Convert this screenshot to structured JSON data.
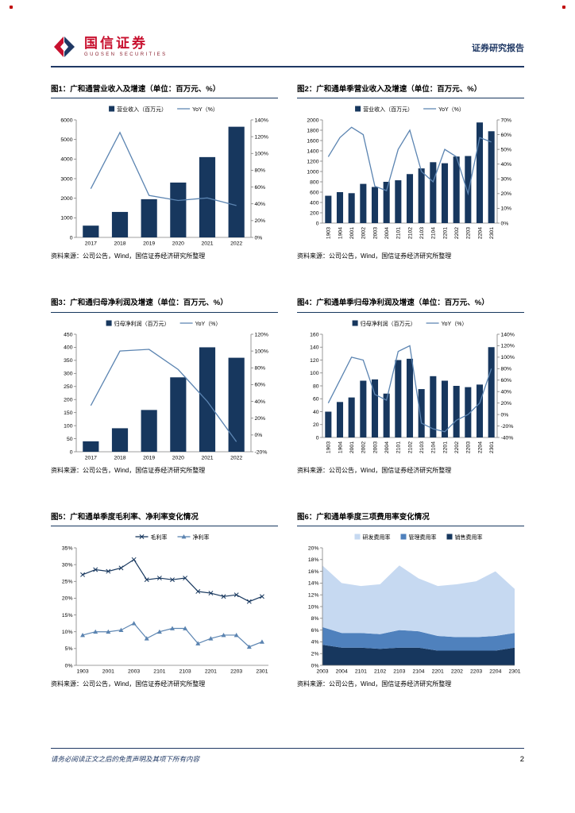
{
  "header": {
    "brand_cn": "国信证券",
    "brand_en": "GUOSEN SECURITIES",
    "report_type": "证券研究报告"
  },
  "footer": {
    "disclaimer": "请务必阅读正文之后的免责声明及其项下所有内容",
    "page_number": "2"
  },
  "colors": {
    "navy": "#17375e",
    "line_blue": "#5b84b1",
    "mid_blue": "#4f81bd",
    "light_blue": "#c6d9f1",
    "brand_red": "#c8102e"
  },
  "chart_data": [
    {
      "figure_label": "图1：广和通营业收入及增速（单位：百万元、%）",
      "source": "资料来源：公司公告，Wind，国信证券经济研究所整理",
      "type": "bar-line",
      "categories": [
        "2017",
        "2018",
        "2019",
        "2020",
        "2021",
        "2022"
      ],
      "bar": {
        "name": "营业收入（百万元）",
        "color": "#17375e",
        "values": [
          600,
          1300,
          1950,
          2800,
          4100,
          5650
        ]
      },
      "line": {
        "name": "YoY（%）",
        "color": "#5b84b1",
        "values": [
          58,
          125,
          50,
          44,
          47,
          38
        ]
      },
      "left_axis": {
        "min": 0,
        "max": 6000,
        "step": 1000,
        "format": "number"
      },
      "right_axis": {
        "min": 0,
        "max": 140,
        "step": 20,
        "format": "percent"
      },
      "x_rotate": false
    },
    {
      "figure_label": "图2：广和通单季营业收入及增速（单位：百万元、%）",
      "source": "资料来源：公司公告，Wind，国信证券经济研究所整理",
      "type": "bar-line",
      "categories": [
        "1903",
        "1904",
        "2001",
        "2002",
        "2003",
        "2004",
        "2101",
        "2102",
        "2103",
        "2104",
        "2201",
        "2202",
        "2203",
        "2204",
        "2301"
      ],
      "bar": {
        "name": "营业收入（百万元）",
        "color": "#17375e",
        "values": [
          530,
          600,
          580,
          760,
          700,
          800,
          830,
          950,
          1060,
          1180,
          1160,
          1290,
          1300,
          1950,
          1780
        ]
      },
      "line": {
        "name": "YoY（%）",
        "color": "#5b84b1",
        "values": [
          45,
          58,
          65,
          60,
          25,
          22,
          50,
          63,
          35,
          28,
          50,
          45,
          20,
          58,
          55
        ]
      },
      "left_axis": {
        "min": 0,
        "max": 2000,
        "step": 200,
        "format": "number"
      },
      "right_axis": {
        "min": 0,
        "max": 70,
        "step": 10,
        "format": "percent"
      },
      "x_rotate": true
    },
    {
      "figure_label": "图3：广和通归母净利润及增速（单位：百万元、%）",
      "source": "资料来源：公司公告，Wind，国信证券经济研究所整理",
      "type": "bar-line",
      "categories": [
        "2017",
        "2018",
        "2019",
        "2020",
        "2021",
        "2022"
      ],
      "bar": {
        "name": "归母净利润（百万元）",
        "color": "#17375e",
        "values": [
          40,
          90,
          160,
          285,
          400,
          360
        ]
      },
      "line": {
        "name": "YoY（%）",
        "color": "#5b84b1",
        "values": [
          35,
          100,
          102,
          78,
          40,
          -8
        ]
      },
      "left_axis": {
        "min": 0,
        "max": 450,
        "step": 50,
        "format": "number"
      },
      "right_axis": {
        "min": -20,
        "max": 120,
        "step": 20,
        "format": "percent"
      },
      "x_rotate": false
    },
    {
      "figure_label": "图4：广和通单季归母净利润及增速（单位：百万元、%）",
      "source": "资料来源：公司公告，Wind，国信证券经济研究所整理",
      "type": "bar-line",
      "categories": [
        "1903",
        "1904",
        "2001",
        "2002",
        "2003",
        "2004",
        "2101",
        "2102",
        "2103",
        "2104",
        "2201",
        "2202",
        "2203",
        "2204",
        "2301"
      ],
      "bar": {
        "name": "归母净利润（百万元）",
        "color": "#17375e",
        "values": [
          40,
          55,
          62,
          88,
          90,
          68,
          120,
          122,
          75,
          95,
          88,
          80,
          78,
          82,
          140
        ]
      },
      "line": {
        "name": "YoY（%）",
        "color": "#5b84b1",
        "values": [
          20,
          60,
          100,
          95,
          35,
          25,
          110,
          120,
          -15,
          -25,
          -30,
          -10,
          0,
          20,
          80
        ]
      },
      "left_axis": {
        "min": 0,
        "max": 160,
        "step": 20,
        "format": "number"
      },
      "right_axis": {
        "min": -40,
        "max": 140,
        "step": 20,
        "format": "percent"
      },
      "x_rotate": true
    },
    {
      "figure_label": "图5：广和通单季度毛利率、净利率变化情况",
      "source": "资料来源：公司公告，Wind，国信证券经济研究所整理",
      "type": "line",
      "categories": [
        "1903",
        "1904",
        "2001",
        "2002",
        "2003",
        "2004",
        "2101",
        "2102",
        "2103",
        "2104",
        "2201",
        "2202",
        "2203",
        "2204",
        "2301"
      ],
      "series": [
        {
          "name": "毛利率",
          "color": "#17375e",
          "marker": "x",
          "values": [
            27,
            28.5,
            28,
            29,
            31.5,
            25.5,
            26,
            25.5,
            26,
            22,
            21.5,
            20.5,
            21,
            19,
            20.5
          ]
        },
        {
          "name": "净利率",
          "color": "#5b84b1",
          "marker": "triangle",
          "values": [
            9,
            10,
            10,
            10.5,
            12.5,
            8,
            10,
            11,
            11,
            6.5,
            8,
            9,
            9,
            5.5,
            7
          ]
        }
      ],
      "left_axis": {
        "min": 0,
        "max": 35,
        "step": 5,
        "format": "percent"
      },
      "x_label_every": 2,
      "x_rotate": false
    },
    {
      "figure_label": "图6：广和通单季度三项费用率变化情况",
      "source": "资料来源：公司公告，Wind，国信证券经济研究所整理",
      "type": "stacked-area",
      "categories": [
        "2003",
        "2004",
        "2101",
        "2102",
        "2103",
        "2104",
        "2201",
        "2202",
        "2203",
        "2204",
        "2301"
      ],
      "series": [
        {
          "name": "销售费用率",
          "color": "#17375e",
          "values": [
            3.5,
            3,
            3,
            2.8,
            3,
            3,
            2.5,
            2.5,
            2.5,
            2.5,
            3
          ]
        },
        {
          "name": "管理费用率",
          "color": "#4f81bd",
          "values": [
            3,
            2.5,
            2.5,
            2.5,
            3,
            2.8,
            2.5,
            2.3,
            2.3,
            2.5,
            2.5
          ]
        },
        {
          "name": "研发费用率",
          "color": "#c6d9f1",
          "values": [
            10.5,
            8.5,
            8,
            8.5,
            11,
            9,
            8.5,
            9,
            9.5,
            11,
            7.5
          ]
        }
      ],
      "legend_reverse": true,
      "left_axis": {
        "min": 0,
        "max": 20,
        "step": 2,
        "format": "percent"
      },
      "x_rotate": false
    }
  ]
}
